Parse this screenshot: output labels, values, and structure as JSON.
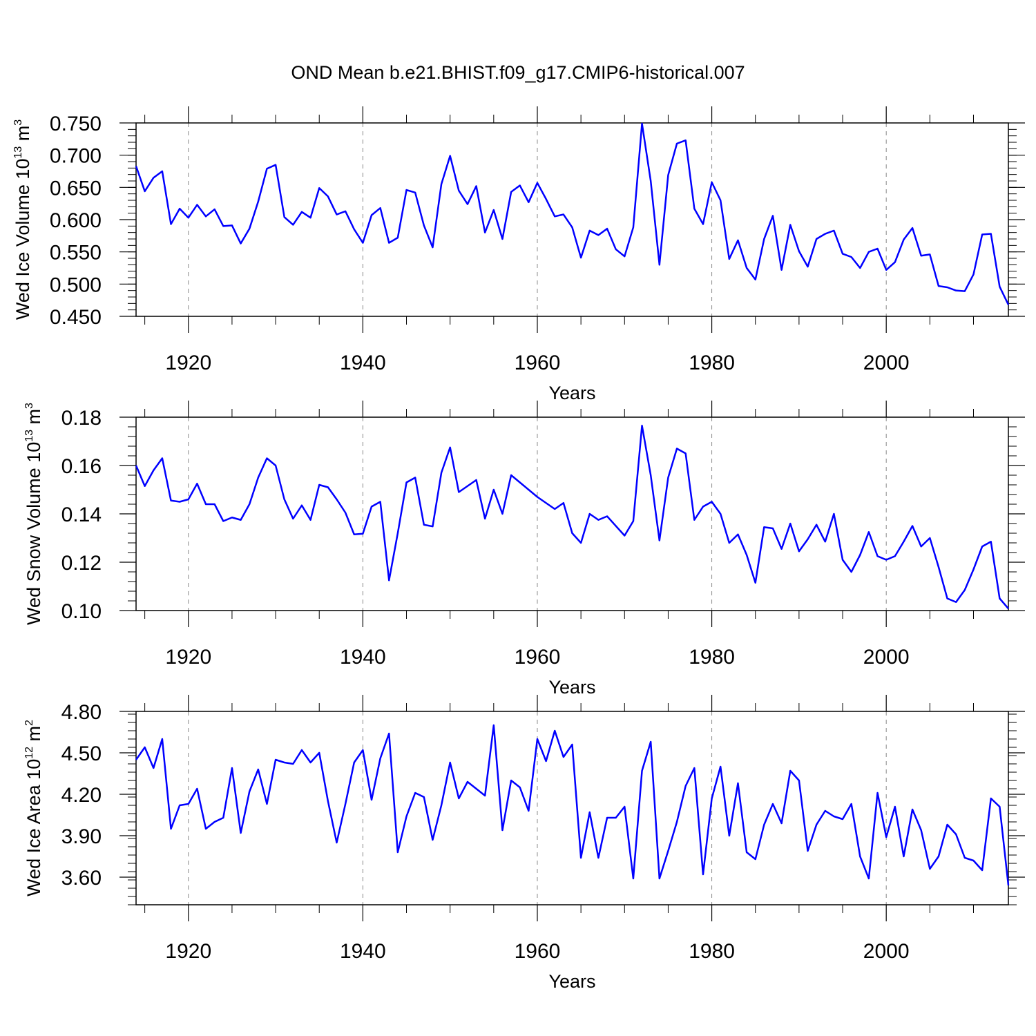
{
  "title": "OND Mean b.e21.BHIST.f09_g17.CMIP6-historical.007",
  "chart_data": [
    {
      "type": "line",
      "ylabel": {
        "text": "Wed Ice Volume 10",
        "exp1": "13",
        "mid": " m",
        "exp2": "3"
      },
      "xlabel": "Years",
      "xlim": [
        1914,
        2014
      ],
      "ylim": [
        0.45,
        0.75
      ],
      "yticks": [
        0.45,
        0.5,
        0.55,
        0.6,
        0.65,
        0.7,
        0.75
      ],
      "ytick_labels": [
        "0.450",
        "0.500",
        "0.550",
        "0.600",
        "0.650",
        "0.700",
        "0.750"
      ],
      "xticks": [
        1920,
        1940,
        1960,
        1980,
        2000
      ],
      "xtick_labels": [
        "1920",
        "1940",
        "1960",
        "1980",
        "2000"
      ],
      "x_start": 1914,
      "color": "#0000ff",
      "values": [
        0.683,
        0.644,
        0.665,
        0.675,
        0.593,
        0.617,
        0.603,
        0.623,
        0.605,
        0.616,
        0.59,
        0.591,
        0.563,
        0.586,
        0.628,
        0.679,
        0.685,
        0.604,
        0.592,
        0.612,
        0.603,
        0.649,
        0.636,
        0.608,
        0.613,
        0.585,
        0.564,
        0.607,
        0.618,
        0.564,
        0.572,
        0.646,
        0.642,
        0.591,
        0.557,
        0.655,
        0.699,
        0.645,
        0.624,
        0.652,
        0.58,
        0.615,
        0.57,
        0.643,
        0.653,
        0.627,
        0.657,
        0.632,
        0.605,
        0.608,
        0.588,
        0.541,
        0.583,
        0.576,
        0.586,
        0.554,
        0.543,
        0.588,
        0.749,
        0.66,
        0.53,
        0.669,
        0.718,
        0.723,
        0.617,
        0.593,
        0.658,
        0.63,
        0.539,
        0.568,
        0.525,
        0.507,
        0.57,
        0.606,
        0.522,
        0.592,
        0.551,
        0.527,
        0.57,
        0.578,
        0.583,
        0.547,
        0.542,
        0.525,
        0.55,
        0.555,
        0.522,
        0.534,
        0.569,
        0.587,
        0.544,
        0.546,
        0.497,
        0.495,
        0.49,
        0.489,
        0.515,
        0.577,
        0.578,
        0.496,
        0.468
      ]
    },
    {
      "type": "line",
      "ylabel": {
        "text": "Wed Snow Volume 10",
        "exp1": "13",
        "mid": " m",
        "exp2": "3"
      },
      "xlabel": "Years",
      "xlim": [
        1914,
        2014
      ],
      "ylim": [
        0.1,
        0.18
      ],
      "yticks": [
        0.1,
        0.12,
        0.14,
        0.16,
        0.18
      ],
      "ytick_labels": [
        "0.10",
        "0.12",
        "0.14",
        "0.16",
        "0.18"
      ],
      "xticks": [
        1920,
        1940,
        1960,
        1980,
        2000
      ],
      "xtick_labels": [
        "1920",
        "1940",
        "1960",
        "1980",
        "2000"
      ],
      "x_start": 1914,
      "color": "#0000ff",
      "values": [
        0.16,
        0.1515,
        0.158,
        0.163,
        0.1455,
        0.145,
        0.146,
        0.1525,
        0.144,
        0.144,
        0.137,
        0.1385,
        0.1375,
        0.144,
        0.155,
        0.163,
        0.16,
        0.146,
        0.138,
        0.1435,
        0.1375,
        0.152,
        0.151,
        0.146,
        0.1405,
        0.1315,
        0.1318,
        0.143,
        0.145,
        0.1125,
        0.132,
        0.153,
        0.155,
        0.1355,
        0.1348,
        0.157,
        0.1675,
        0.149,
        0.1515,
        0.154,
        0.138,
        0.15,
        0.14,
        0.156,
        0.153,
        0.15,
        0.147,
        0.1445,
        0.142,
        0.1445,
        0.132,
        0.128,
        0.14,
        0.1375,
        0.139,
        0.135,
        0.131,
        0.137,
        0.1765,
        0.156,
        0.129,
        0.155,
        0.167,
        0.165,
        0.1375,
        0.143,
        0.145,
        0.14,
        0.128,
        0.1315,
        0.123,
        0.1115,
        0.1345,
        0.134,
        0.1255,
        0.136,
        0.1245,
        0.1295,
        0.1355,
        0.1285,
        0.14,
        0.121,
        0.116,
        0.123,
        0.1325,
        0.1225,
        0.121,
        0.1225,
        0.1285,
        0.135,
        0.1265,
        0.13,
        0.118,
        0.105,
        0.1035,
        0.1085,
        0.117,
        0.1265,
        0.1285,
        0.105,
        0.1008
      ]
    },
    {
      "type": "line",
      "ylabel": {
        "text": "Wed Ice Area 10",
        "exp1": "12",
        "mid": " m",
        "exp2": "2"
      },
      "xlabel": "Years",
      "xlim": [
        1914,
        2014
      ],
      "ylim": [
        3.4,
        4.8
      ],
      "yticks": [
        3.6,
        3.9,
        4.2,
        4.5,
        4.8
      ],
      "ytick_labels": [
        "3.60",
        "3.90",
        "4.20",
        "4.50",
        "4.80"
      ],
      "xticks": [
        1920,
        1940,
        1960,
        1980,
        2000
      ],
      "xtick_labels": [
        "1920",
        "1940",
        "1960",
        "1980",
        "2000"
      ],
      "x_start": 1914,
      "color": "#0000ff",
      "values": [
        4.45,
        4.54,
        4.39,
        4.6,
        3.95,
        4.12,
        4.13,
        4.24,
        3.95,
        4.0,
        4.03,
        4.39,
        3.92,
        4.22,
        4.38,
        4.13,
        4.45,
        4.43,
        4.42,
        4.52,
        4.43,
        4.5,
        4.15,
        3.85,
        4.13,
        4.43,
        4.52,
        4.16,
        4.46,
        4.64,
        3.78,
        4.04,
        4.21,
        4.18,
        3.87,
        4.12,
        4.43,
        4.17,
        4.29,
        4.24,
        4.19,
        4.7,
        3.94,
        4.3,
        4.25,
        4.08,
        4.6,
        4.44,
        4.66,
        4.47,
        4.56,
        3.74,
        4.07,
        3.74,
        4.03,
        4.03,
        4.11,
        3.59,
        4.37,
        4.58,
        3.59,
        3.79,
        4.0,
        4.26,
        4.39,
        3.62,
        4.17,
        4.4,
        3.9,
        4.28,
        3.78,
        3.73,
        3.98,
        4.13,
        3.99,
        4.37,
        4.3,
        3.79,
        3.98,
        4.08,
        4.04,
        4.02,
        4.13,
        3.75,
        3.59,
        4.21,
        3.89,
        4.11,
        3.75,
        4.09,
        3.94,
        3.66,
        3.75,
        3.98,
        3.91,
        3.74,
        3.72,
        3.65,
        4.17,
        4.11,
        3.54
      ]
    }
  ]
}
